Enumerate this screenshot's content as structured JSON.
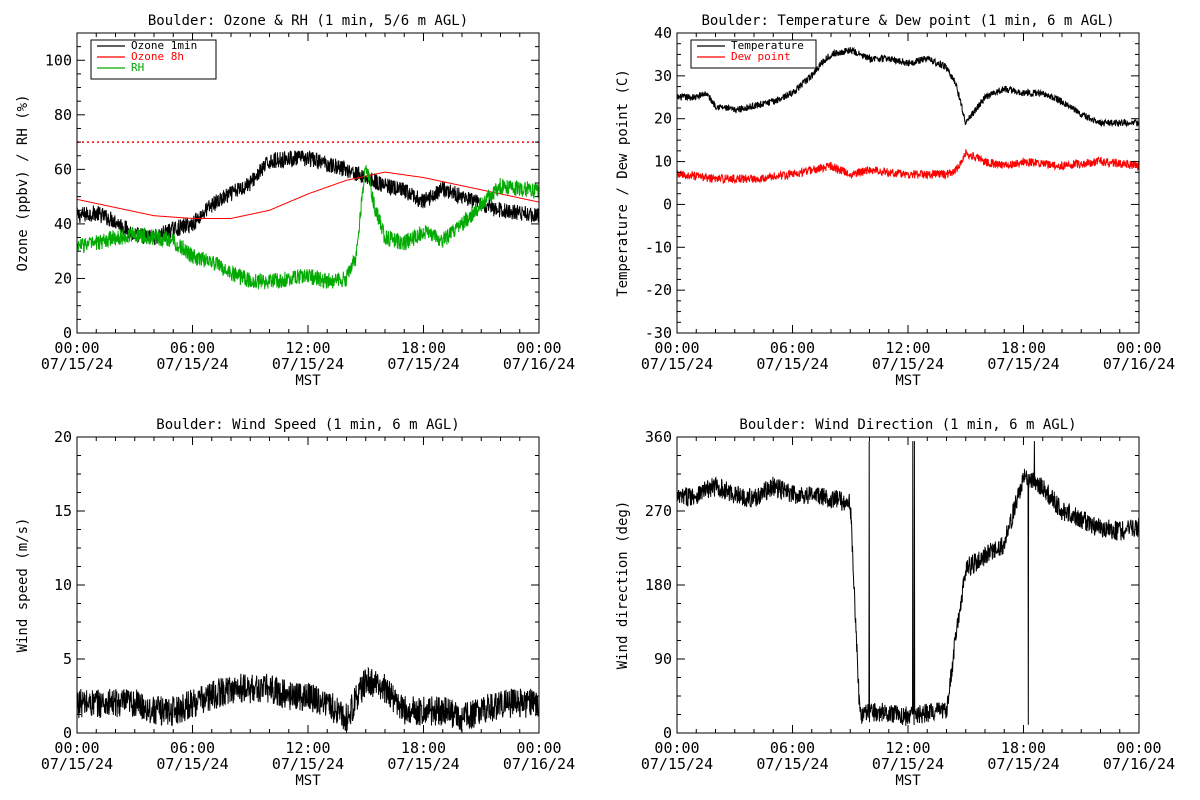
{
  "chart_data": [
    {
      "type": "line",
      "title": "Boulder: Ozone & RH (1 min, 5/6 m AGL)",
      "xlabel": "MST",
      "ylabel": "Ozone (ppbv) / RH (%)",
      "xlim": [
        "2024-07-15 00:00",
        "2024-07-16 00:00"
      ],
      "ylim": [
        0,
        110
      ],
      "yticks": [
        0,
        20,
        40,
        60,
        80,
        100
      ],
      "x_ticks": [
        {
          "hour": 0,
          "time": "00:00",
          "date": "07/15/24"
        },
        {
          "hour": 6,
          "time": "06:00",
          "date": "07/15/24"
        },
        {
          "hour": 12,
          "time": "12:00",
          "date": "07/15/24"
        },
        {
          "hour": 18,
          "time": "18:00",
          "date": "07/15/24"
        },
        {
          "hour": 24,
          "time": "00:00",
          "date": "07/16/24"
        }
      ],
      "grid": false,
      "legend_position": "top-left",
      "reference_lines": [
        {
          "y": 70,
          "color": "#ff0000",
          "style": "dotted"
        }
      ],
      "series": [
        {
          "name": "Ozone 1min",
          "color": "#000000",
          "x": [
            "2024-07-15 00:00",
            "2024-07-15 01:00",
            "2024-07-15 02:00",
            "2024-07-15 03:00",
            "2024-07-15 04:00",
            "2024-07-15 05:00",
            "2024-07-15 06:00",
            "2024-07-15 07:00",
            "2024-07-15 08:00",
            "2024-07-15 09:00",
            "2024-07-15 10:00",
            "2024-07-15 11:00",
            "2024-07-15 12:00",
            "2024-07-15 13:00",
            "2024-07-15 14:00",
            "2024-07-15 15:00",
            "2024-07-15 16:00",
            "2024-07-15 17:00",
            "2024-07-15 18:00",
            "2024-07-15 19:00",
            "2024-07-15 20:00",
            "2024-07-15 21:00",
            "2024-07-15 22:00",
            "2024-07-15 23:00",
            "2024-07-16 00:00"
          ],
          "y": [
            43,
            44,
            41,
            36,
            35,
            38,
            40,
            47,
            51,
            55,
            63,
            64,
            64,
            62,
            60,
            57,
            54,
            52,
            48,
            53,
            50,
            47,
            45,
            44,
            43
          ]
        },
        {
          "name": "Ozone 8h",
          "color": "#ff0000",
          "x": [
            "2024-07-15 00:00",
            "2024-07-15 02:00",
            "2024-07-15 04:00",
            "2024-07-15 06:00",
            "2024-07-15 08:00",
            "2024-07-15 10:00",
            "2024-07-15 12:00",
            "2024-07-15 14:00",
            "2024-07-15 16:00",
            "2024-07-15 18:00",
            "2024-07-15 20:00",
            "2024-07-15 22:00",
            "2024-07-16 00:00"
          ],
          "y": [
            49,
            46,
            43,
            42,
            42,
            45,
            51,
            56,
            59,
            57,
            54,
            51,
            48
          ]
        },
        {
          "name": "RH",
          "color": "#00aa00",
          "x": [
            "2024-07-15 00:00",
            "2024-07-15 01:00",
            "2024-07-15 02:00",
            "2024-07-15 03:00",
            "2024-07-15 04:00",
            "2024-07-15 05:00",
            "2024-07-15 06:00",
            "2024-07-15 07:00",
            "2024-07-15 08:00",
            "2024-07-15 09:00",
            "2024-07-15 10:00",
            "2024-07-15 11:00",
            "2024-07-15 12:00",
            "2024-07-15 13:00",
            "2024-07-15 14:00",
            "2024-07-15 14:30",
            "2024-07-15 15:00",
            "2024-07-15 15:30",
            "2024-07-15 16:00",
            "2024-07-15 17:00",
            "2024-07-15 18:00",
            "2024-07-15 19:00",
            "2024-07-15 20:00",
            "2024-07-15 21:00",
            "2024-07-15 22:00",
            "2024-07-15 23:00",
            "2024-07-16 00:00"
          ],
          "y": [
            32,
            33,
            35,
            36,
            35,
            34,
            28,
            26,
            22,
            19,
            19,
            20,
            21,
            19,
            20,
            28,
            62,
            45,
            35,
            33,
            37,
            34,
            40,
            47,
            54,
            53,
            52
          ]
        }
      ]
    },
    {
      "type": "line",
      "title": "Boulder: Temperature & Dew point (1 min, 6 m AGL)",
      "xlabel": "MST",
      "ylabel": "Temperature / Dew point (C)",
      "xlim": [
        "2024-07-15 00:00",
        "2024-07-16 00:00"
      ],
      "ylim": [
        -30,
        40
      ],
      "yticks": [
        -30,
        -20,
        -10,
        0,
        10,
        20,
        30,
        40
      ],
      "x_ticks": [
        {
          "hour": 0,
          "time": "00:00",
          "date": "07/15/24"
        },
        {
          "hour": 6,
          "time": "06:00",
          "date": "07/15/24"
        },
        {
          "hour": 12,
          "time": "12:00",
          "date": "07/15/24"
        },
        {
          "hour": 18,
          "time": "18:00",
          "date": "07/15/24"
        },
        {
          "hour": 24,
          "time": "00:00",
          "date": "07/16/24"
        }
      ],
      "grid": false,
      "legend_position": "top-left",
      "series": [
        {
          "name": "Temperature",
          "color": "#000000",
          "x": [
            "2024-07-15 00:00",
            "2024-07-15 01:00",
            "2024-07-15 01:30",
            "2024-07-15 02:00",
            "2024-07-15 03:00",
            "2024-07-15 04:00",
            "2024-07-15 05:00",
            "2024-07-15 06:00",
            "2024-07-15 07:00",
            "2024-07-15 07:30",
            "2024-07-15 08:00",
            "2024-07-15 09:00",
            "2024-07-15 10:00",
            "2024-07-15 11:00",
            "2024-07-15 12:00",
            "2024-07-15 13:00",
            "2024-07-15 14:00",
            "2024-07-15 14:30",
            "2024-07-15 15:00",
            "2024-07-15 15:30",
            "2024-07-15 16:00",
            "2024-07-15 17:00",
            "2024-07-15 18:00",
            "2024-07-15 19:00",
            "2024-07-15 20:00",
            "2024-07-15 21:00",
            "2024-07-15 22:00",
            "2024-07-15 23:00",
            "2024-07-16 00:00"
          ],
          "y": [
            25,
            25,
            26,
            23,
            22,
            23,
            24,
            26,
            30,
            33,
            35,
            36,
            34,
            34,
            33,
            34,
            32,
            28,
            19,
            22,
            25,
            27,
            26,
            26,
            24,
            21,
            19,
            19,
            19
          ]
        },
        {
          "name": "Dew point",
          "color": "#ff0000",
          "x": [
            "2024-07-15 00:00",
            "2024-07-15 02:00",
            "2024-07-15 04:00",
            "2024-07-15 06:00",
            "2024-07-15 07:00",
            "2024-07-15 08:00",
            "2024-07-15 09:00",
            "2024-07-15 10:00",
            "2024-07-15 12:00",
            "2024-07-15 14:00",
            "2024-07-15 14:30",
            "2024-07-15 15:00",
            "2024-07-15 16:00",
            "2024-07-15 17:00",
            "2024-07-15 18:00",
            "2024-07-15 20:00",
            "2024-07-15 22:00",
            "2024-07-16 00:00"
          ],
          "y": [
            7,
            6,
            6,
            7,
            8,
            9,
            7,
            8,
            7,
            7,
            8,
            12,
            10,
            9,
            10,
            9,
            10,
            9
          ]
        }
      ]
    },
    {
      "type": "line",
      "title": "Boulder: Wind Speed (1 min, 6 m AGL)",
      "xlabel": "MST",
      "ylabel": "Wind speed (m/s)",
      "xlim": [
        "2024-07-15 00:00",
        "2024-07-16 00:00"
      ],
      "ylim": [
        0,
        20
      ],
      "yticks": [
        0,
        5,
        10,
        15,
        20
      ],
      "x_ticks": [
        {
          "hour": 0,
          "time": "00:00",
          "date": "07/15/24"
        },
        {
          "hour": 6,
          "time": "06:00",
          "date": "07/15/24"
        },
        {
          "hour": 12,
          "time": "12:00",
          "date": "07/15/24"
        },
        {
          "hour": 18,
          "time": "18:00",
          "date": "07/15/24"
        },
        {
          "hour": 24,
          "time": "00:00",
          "date": "07/16/24"
        }
      ],
      "grid": false,
      "series": [
        {
          "color": "#000000",
          "x": [
            "2024-07-15 00:00",
            "2024-07-15 01:00",
            "2024-07-15 02:00",
            "2024-07-15 03:00",
            "2024-07-15 04:00",
            "2024-07-15 05:00",
            "2024-07-15 06:00",
            "2024-07-15 07:00",
            "2024-07-15 08:00",
            "2024-07-15 09:00",
            "2024-07-15 10:00",
            "2024-07-15 11:00",
            "2024-07-15 12:00",
            "2024-07-15 13:00",
            "2024-07-15 14:00",
            "2024-07-15 15:00",
            "2024-07-15 16:00",
            "2024-07-15 17:00",
            "2024-07-15 18:00",
            "2024-07-15 19:00",
            "2024-07-15 20:00",
            "2024-07-15 21:00",
            "2024-07-15 22:00",
            "2024-07-15 23:00",
            "2024-07-16 00:00"
          ],
          "y": [
            2,
            2,
            2,
            2,
            1.5,
            1.5,
            2,
            2.5,
            3,
            3,
            3,
            2.5,
            2.5,
            2,
            1,
            3.5,
            3,
            1.5,
            1.5,
            1.5,
            1,
            1.5,
            2,
            2,
            2
          ]
        }
      ]
    },
    {
      "type": "line",
      "title": "Boulder: Wind Direction (1 min, 6 m AGL)",
      "xlabel": "MST",
      "ylabel": "Wind direction (deg)",
      "xlim": [
        "2024-07-15 00:00",
        "2024-07-16 00:00"
      ],
      "ylim": [
        0,
        360
      ],
      "yticks": [
        0,
        90,
        180,
        270,
        360
      ],
      "x_ticks": [
        {
          "hour": 0,
          "time": "00:00",
          "date": "07/15/24"
        },
        {
          "hour": 6,
          "time": "06:00",
          "date": "07/15/24"
        },
        {
          "hour": 12,
          "time": "12:00",
          "date": "07/15/24"
        },
        {
          "hour": 18,
          "time": "18:00",
          "date": "07/15/24"
        },
        {
          "hour": 24,
          "time": "00:00",
          "date": "07/16/24"
        }
      ],
      "grid": false,
      "series": [
        {
          "color": "#000000",
          "x": [
            "2024-07-15 00:00",
            "2024-07-15 01:00",
            "2024-07-15 02:00",
            "2024-07-15 03:00",
            "2024-07-15 04:00",
            "2024-07-15 05:00",
            "2024-07-15 06:00",
            "2024-07-15 07:00",
            "2024-07-15 08:00",
            "2024-07-15 09:00",
            "2024-07-15 09:30",
            "2024-07-15 10:00",
            "2024-07-15 11:00",
            "2024-07-15 12:00",
            "2024-07-15 13:00",
            "2024-07-15 14:00",
            "2024-07-15 14:30",
            "2024-07-15 15:00",
            "2024-07-15 16:00",
            "2024-07-15 17:00",
            "2024-07-15 18:00",
            "2024-07-15 19:00",
            "2024-07-15 20:00",
            "2024-07-15 21:00",
            "2024-07-15 22:00",
            "2024-07-15 23:00",
            "2024-07-16 00:00"
          ],
          "y": [
            285,
            290,
            300,
            290,
            285,
            300,
            290,
            290,
            285,
            280,
            20,
            25,
            25,
            20,
            25,
            25,
            120,
            200,
            215,
            230,
            310,
            300,
            270,
            260,
            250,
            245,
            250
          ]
        }
      ]
    }
  ]
}
